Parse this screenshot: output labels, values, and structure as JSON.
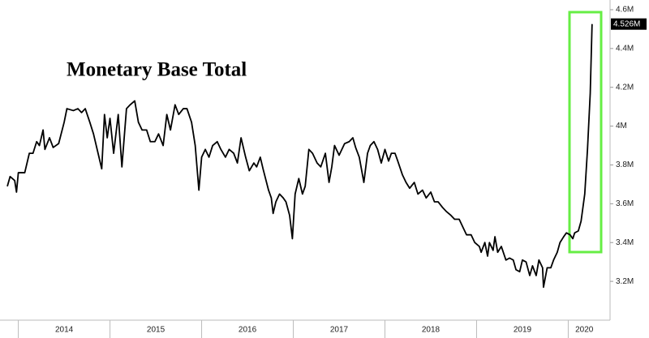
{
  "chart_data": {
    "type": "line",
    "title": "Monetary Base Total",
    "xlim": [
      2013.8,
      2020.35
    ],
    "xticks": [
      {
        "value": 2014,
        "label": "2014"
      },
      {
        "value": 2015,
        "label": "2015"
      },
      {
        "value": 2016,
        "label": "2016"
      },
      {
        "value": 2017,
        "label": "2017"
      },
      {
        "value": 2018,
        "label": "2018"
      },
      {
        "value": 2019,
        "label": "2019"
      },
      {
        "value": 2020,
        "label": "2020"
      }
    ],
    "ylim": [
      3.0,
      4.65
    ],
    "yticks": [
      {
        "value": 3.2,
        "label": "3.2M"
      },
      {
        "value": 3.4,
        "label": "3.4M"
      },
      {
        "value": 3.6,
        "label": "3.6M"
      },
      {
        "value": 3.8,
        "label": "3.8M"
      },
      {
        "value": 4,
        "label": "4M"
      },
      {
        "value": 4.2,
        "label": "4.2M"
      },
      {
        "value": 4.4,
        "label": "4.4M"
      },
      {
        "value": 4.6,
        "label": "4.6M"
      }
    ],
    "grid": false,
    "x": [
      2013.88,
      2013.91,
      2013.96,
      2013.98,
      2014.0,
      2014.07,
      2014.12,
      2014.16,
      2014.2,
      2014.23,
      2014.27,
      2014.29,
      2014.34,
      2014.38,
      2014.44,
      2014.5,
      2014.53,
      2014.6,
      2014.65,
      2014.69,
      2014.73,
      2014.78,
      2014.82,
      2014.87,
      2014.91,
      2014.94,
      2014.97,
      2015.0,
      2015.04,
      2015.09,
      2015.13,
      2015.18,
      2015.22,
      2015.27,
      2015.31,
      2015.35,
      2015.4,
      2015.44,
      2015.49,
      2015.53,
      2015.58,
      2015.62,
      2015.66,
      2015.71,
      2015.75,
      2015.8,
      2015.84,
      2015.89,
      2015.93,
      2015.97,
      2016.0,
      2016.04,
      2016.08,
      2016.12,
      2016.17,
      2016.21,
      2016.26,
      2016.3,
      2016.35,
      2016.39,
      2016.43,
      2016.48,
      2016.52,
      2016.57,
      2016.6,
      2016.64,
      2016.67,
      2016.73,
      2016.76,
      2016.78,
      2016.81,
      2016.85,
      2016.89,
      2016.92,
      2016.96,
      2016.99,
      2017.02,
      2017.06,
      2017.1,
      2017.13,
      2017.17,
      2017.21,
      2017.26,
      2017.3,
      2017.35,
      2017.39,
      2017.42,
      2017.45,
      2017.5,
      2017.56,
      2017.61,
      2017.65,
      2017.68,
      2017.72,
      2017.77,
      2017.81,
      2017.84,
      2017.88,
      2017.92,
      2017.96,
      2018.0,
      2018.04,
      2018.07,
      2018.11,
      2018.14,
      2018.19,
      2018.23,
      2018.27,
      2018.32,
      2018.36,
      2018.41,
      2018.45,
      2018.5,
      2018.54,
      2018.58,
      2018.63,
      2018.67,
      2018.72,
      2018.76,
      2018.81,
      2018.85,
      2018.89,
      2018.94,
      2018.98,
      2019.03,
      2019.05,
      2019.09,
      2019.12,
      2019.14,
      2019.18,
      2019.2,
      2019.23,
      2019.27,
      2019.32,
      2019.36,
      2019.4,
      2019.43,
      2019.47,
      2019.5,
      2019.54,
      2019.58,
      2019.61,
      2019.65,
      2019.68,
      2019.72,
      2019.73,
      2019.77,
      2019.81,
      2019.84,
      2019.88,
      2019.91,
      2019.95,
      2019.98,
      2020.02,
      2020.05,
      2020.07,
      2020.11,
      2020.14,
      2020.18,
      2020.21,
      2020.24,
      2020.26
    ],
    "series": [
      {
        "color": "#000000",
        "values": [
          3.69,
          3.74,
          3.72,
          3.66,
          3.76,
          3.76,
          3.86,
          3.86,
          3.92,
          3.9,
          3.98,
          3.88,
          3.94,
          3.89,
          3.91,
          4.02,
          4.09,
          4.08,
          4.09,
          4.07,
          4.09,
          4.02,
          3.96,
          3.86,
          3.78,
          4.06,
          3.94,
          4.04,
          3.86,
          4.06,
          3.79,
          4.09,
          4.11,
          4.13,
          4.02,
          3.98,
          3.98,
          3.92,
          3.92,
          3.96,
          3.9,
          4.06,
          3.98,
          4.11,
          4.06,
          4.09,
          4.09,
          4.02,
          3.9,
          3.67,
          3.84,
          3.88,
          3.84,
          3.9,
          3.92,
          3.88,
          3.84,
          3.88,
          3.86,
          3.81,
          3.94,
          3.84,
          3.77,
          3.81,
          3.79,
          3.84,
          3.78,
          3.67,
          3.63,
          3.55,
          3.61,
          3.65,
          3.63,
          3.61,
          3.54,
          3.42,
          3.65,
          3.73,
          3.65,
          3.69,
          3.88,
          3.86,
          3.81,
          3.79,
          3.86,
          3.71,
          3.79,
          3.9,
          3.85,
          3.91,
          3.92,
          3.94,
          3.89,
          3.84,
          3.71,
          3.86,
          3.9,
          3.92,
          3.88,
          3.81,
          3.88,
          3.82,
          3.86,
          3.86,
          3.82,
          3.75,
          3.71,
          3.68,
          3.71,
          3.65,
          3.67,
          3.63,
          3.66,
          3.61,
          3.61,
          3.58,
          3.56,
          3.54,
          3.52,
          3.52,
          3.48,
          3.44,
          3.44,
          3.4,
          3.38,
          3.35,
          3.4,
          3.33,
          3.4,
          3.36,
          3.43,
          3.35,
          3.38,
          3.31,
          3.32,
          3.31,
          3.26,
          3.25,
          3.31,
          3.3,
          3.23,
          3.28,
          3.23,
          3.31,
          3.27,
          3.17,
          3.27,
          3.27,
          3.31,
          3.35,
          3.4,
          3.43,
          3.45,
          3.44,
          3.42,
          3.45,
          3.46,
          3.51,
          3.65,
          3.88,
          4.17,
          4.526
        ],
        "value_labels": [
          null,
          null,
          null,
          null,
          null,
          null,
          null,
          null,
          null,
          null,
          null,
          null,
          null,
          null,
          null,
          null,
          null,
          null,
          null,
          null,
          null,
          null,
          null,
          null,
          null,
          null,
          null,
          null,
          null,
          null,
          null,
          null,
          null,
          null,
          null,
          null,
          null,
          null,
          null,
          null,
          null,
          null,
          null,
          null,
          null,
          null,
          null,
          null,
          null,
          null,
          null,
          null,
          null,
          null,
          null,
          null,
          null,
          null,
          null,
          null,
          null,
          null,
          null,
          null,
          null,
          null,
          null,
          null,
          null,
          null,
          null,
          null,
          null,
          null,
          null,
          null,
          null,
          null,
          null,
          null,
          null,
          null,
          null,
          null,
          null,
          null,
          null,
          null,
          null,
          null,
          null,
          null,
          null,
          null,
          null,
          null,
          null,
          null,
          null,
          null,
          null,
          null,
          null,
          null,
          null,
          null,
          null,
          null,
          null,
          null,
          null,
          null,
          null,
          null,
          null,
          null,
          null,
          null,
          null,
          null,
          null,
          null,
          null,
          null,
          null,
          null,
          null,
          null,
          null,
          null,
          null,
          null,
          null,
          null,
          null,
          null,
          null,
          null,
          null,
          null,
          null,
          null,
          null,
          null,
          null,
          null,
          null,
          null,
          null,
          null,
          null,
          null,
          null,
          null,
          null,
          null,
          null,
          null,
          null,
          null,
          null,
          "4.526M"
        ]
      }
    ]
  }
}
